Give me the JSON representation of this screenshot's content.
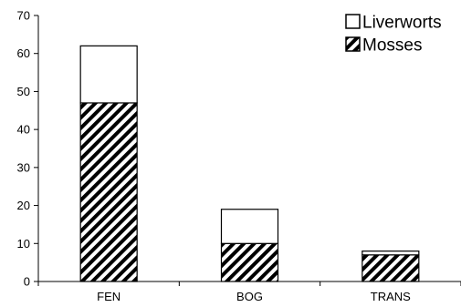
{
  "chart_data": {
    "type": "bar",
    "stacked": true,
    "title": "",
    "xlabel": "",
    "ylabel": "",
    "categories": [
      "FEN",
      "BOG",
      "TRANS"
    ],
    "series": [
      {
        "name": "Mosses",
        "values": [
          47,
          10,
          7
        ],
        "fill": "hatched",
        "color": "#000000"
      },
      {
        "name": "Liverworts",
        "values": [
          15,
          9,
          1
        ],
        "fill": "solid",
        "color": "#ffffff"
      }
    ],
    "ylim": [
      0,
      70
    ],
    "yticks": [
      0,
      10,
      20,
      30,
      40,
      50,
      60,
      70
    ],
    "grid": false,
    "legend_position": "top-right",
    "legend_order": [
      "Liverworts",
      "Mosses"
    ]
  }
}
